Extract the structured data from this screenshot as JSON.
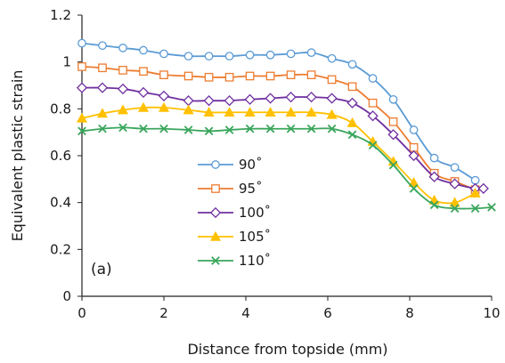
{
  "chart_data": {
    "type": "line",
    "panel_label": "(a)",
    "xlabel": "Distance from topside (mm)",
    "ylabel": "Equivalent plastic strain",
    "xlim": [
      0,
      10
    ],
    "ylim": [
      0,
      1.2
    ],
    "xticks": [
      0,
      2,
      4,
      6,
      8,
      10
    ],
    "yticks": [
      0,
      0.2,
      0.4,
      0.6,
      0.8,
      1,
      1.2
    ],
    "xtick_labels": [
      "0",
      "2",
      "4",
      "6",
      "8",
      "10"
    ],
    "ytick_labels": [
      "0",
      "0.2",
      "0.4",
      "0.6",
      "0.8",
      "1",
      "1.2"
    ],
    "grid": false,
    "legend_position": "center-left",
    "series": [
      {
        "name": "90˚",
        "color": "#5b9bd5",
        "marker": "circle",
        "x": [
          0,
          0.5,
          1.0,
          1.5,
          2.0,
          2.6,
          3.1,
          3.6,
          4.1,
          4.6,
          5.1,
          5.6,
          6.1,
          6.6,
          7.1,
          7.6,
          8.1,
          8.6,
          9.1,
          9.6
        ],
        "y": [
          1.08,
          1.07,
          1.06,
          1.05,
          1.035,
          1.025,
          1.025,
          1.025,
          1.03,
          1.03,
          1.035,
          1.04,
          1.015,
          0.99,
          0.93,
          0.84,
          0.71,
          0.59,
          0.55,
          0.495
        ]
      },
      {
        "name": "95˚",
        "color": "#ed7d31",
        "marker": "square",
        "x": [
          0,
          0.5,
          1.0,
          1.5,
          2.0,
          2.6,
          3.1,
          3.6,
          4.1,
          4.6,
          5.1,
          5.6,
          6.1,
          6.6,
          7.1,
          7.6,
          8.1,
          8.6,
          9.1,
          9.6
        ],
        "y": [
          0.98,
          0.975,
          0.965,
          0.96,
          0.945,
          0.94,
          0.935,
          0.935,
          0.94,
          0.94,
          0.945,
          0.945,
          0.925,
          0.895,
          0.825,
          0.745,
          0.635,
          0.525,
          0.49,
          0.455
        ]
      },
      {
        "name": "100˚",
        "color": "#7030a0",
        "marker": "diamond",
        "x": [
          0,
          0.5,
          1.0,
          1.5,
          2.0,
          2.6,
          3.1,
          3.6,
          4.1,
          4.6,
          5.1,
          5.6,
          6.1,
          6.6,
          7.1,
          7.6,
          8.1,
          8.6,
          9.1,
          9.6,
          9.8
        ],
        "y": [
          0.89,
          0.89,
          0.885,
          0.87,
          0.855,
          0.835,
          0.835,
          0.835,
          0.84,
          0.845,
          0.85,
          0.85,
          0.845,
          0.825,
          0.77,
          0.69,
          0.6,
          0.51,
          0.48,
          0.46,
          0.46
        ]
      },
      {
        "name": "105˚",
        "color": "#ffc000",
        "marker": "triangle",
        "x": [
          0,
          0.5,
          1.0,
          1.5,
          2.0,
          2.6,
          3.1,
          3.6,
          4.1,
          4.6,
          5.1,
          5.6,
          6.1,
          6.6,
          7.1,
          7.6,
          8.1,
          8.6,
          9.1,
          9.6
        ],
        "y": [
          0.76,
          0.78,
          0.795,
          0.805,
          0.805,
          0.795,
          0.785,
          0.785,
          0.785,
          0.785,
          0.785,
          0.785,
          0.775,
          0.74,
          0.66,
          0.575,
          0.485,
          0.41,
          0.4,
          0.44
        ]
      },
      {
        "name": "110˚",
        "color": "#3aa65c",
        "marker": "x",
        "x": [
          0,
          0.5,
          1.0,
          1.5,
          2.0,
          2.6,
          3.1,
          3.6,
          4.1,
          4.6,
          5.1,
          5.6,
          6.1,
          6.6,
          7.1,
          7.6,
          8.1,
          8.6,
          9.1,
          9.6,
          10
        ],
        "y": [
          0.705,
          0.715,
          0.72,
          0.715,
          0.715,
          0.71,
          0.705,
          0.71,
          0.715,
          0.715,
          0.715,
          0.715,
          0.715,
          0.69,
          0.645,
          0.56,
          0.46,
          0.39,
          0.375,
          0.375,
          0.38
        ]
      }
    ]
  }
}
